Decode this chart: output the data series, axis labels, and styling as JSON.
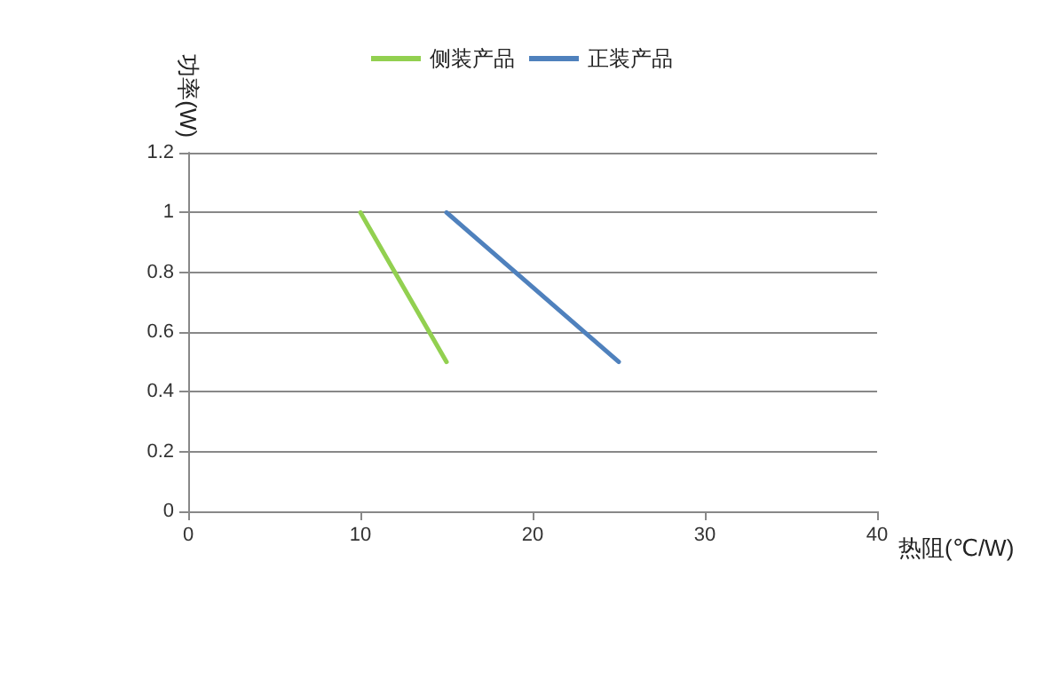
{
  "chart_data": {
    "type": "line",
    "xlabel": "热阻(℃/W)",
    "ylabel": "功率(W)",
    "series": [
      {
        "name": "侧装产品",
        "color": "#92d050",
        "x": [
          10,
          15
        ],
        "values": [
          1,
          0.5
        ]
      },
      {
        "name": "正装产品",
        "color": "#4f81bd",
        "x": [
          15,
          25
        ],
        "values": [
          1,
          0.5
        ]
      }
    ],
    "xlim": [
      0,
      40
    ],
    "xticks": [
      0,
      10,
      20,
      30,
      40
    ],
    "ylim": [
      0,
      1.2
    ],
    "yticks": [
      0,
      0.2,
      0.4,
      0.6,
      0.8,
      1,
      1.2
    ],
    "grid": "y",
    "legend": "top",
    "marker": "none",
    "line_style": "solid"
  }
}
